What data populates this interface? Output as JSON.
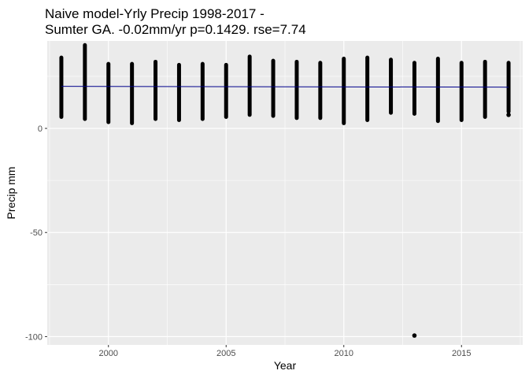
{
  "chart_data": {
    "type": "scatter",
    "title": [
      "Naive model-Yrly Precip 1998-2017 -",
      "Sumter GA. -0.02mm/yr p=0.1429. rse=7.74"
    ],
    "xlabel": "Year",
    "ylabel": "Precip mm",
    "xlim": [
      1997.4,
      2017.6
    ],
    "ylim": [
      -104,
      42
    ],
    "x_ticks": [
      2000,
      2005,
      2010,
      2015
    ],
    "y_ticks": [
      -100,
      -50,
      0
    ],
    "grid": true,
    "panel_color": "#ebebeb",
    "grid_color": "#ffffff",
    "point_color": "#000000",
    "fit_line_color": "#00008b",
    "series": [
      {
        "type": "range",
        "points": [
          {
            "x": 1998,
            "min": 5.5,
            "max": 34
          },
          {
            "x": 1999,
            "min": 4.5,
            "max": 40
          },
          {
            "x": 2000,
            "min": 3,
            "max": 31
          },
          {
            "x": 2001,
            "min": 2.5,
            "max": 31
          },
          {
            "x": 2002,
            "min": 4.5,
            "max": 32
          },
          {
            "x": 2003,
            "min": 4,
            "max": 30.5
          },
          {
            "x": 2004,
            "min": 4.5,
            "max": 31
          },
          {
            "x": 2005,
            "min": 5.5,
            "max": 30.5
          },
          {
            "x": 2006,
            "min": 6.5,
            "max": 34.5
          },
          {
            "x": 2007,
            "min": 6,
            "max": 32.5
          },
          {
            "x": 2008,
            "min": 5,
            "max": 32
          },
          {
            "x": 2009,
            "min": 5,
            "max": 31.5
          },
          {
            "x": 2010,
            "min": 2.5,
            "max": 33.5
          },
          {
            "x": 2011,
            "min": 4,
            "max": 34
          },
          {
            "x": 2012,
            "min": 7.5,
            "max": 33
          },
          {
            "x": 2013,
            "min": 7,
            "max": 31.5
          },
          {
            "x": 2014,
            "min": 3.5,
            "max": 33.5
          },
          {
            "x": 2015,
            "min": 4,
            "max": 31.5
          },
          {
            "x": 2016,
            "min": 5.5,
            "max": 32
          },
          {
            "x": 2017,
            "min": 8,
            "max": 31.5
          }
        ]
      },
      {
        "type": "points",
        "points": [
          {
            "x": 2013,
            "y": -99.5
          },
          {
            "x": 2017,
            "y": 6.5
          }
        ]
      },
      {
        "type": "fit_line",
        "x": [
          1998,
          2017
        ],
        "y": [
          20.2,
          19.8
        ]
      }
    ]
  }
}
